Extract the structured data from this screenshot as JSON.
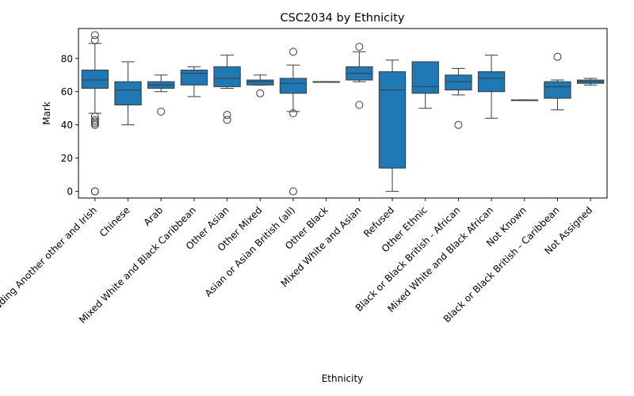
{
  "chart_data": {
    "type": "box",
    "title": "CSC2034 by Ethnicity",
    "xlabel": "Ethnicity",
    "ylabel": "Mark",
    "ylim": [
      -4,
      98
    ],
    "yticks": [
      0,
      20,
      40,
      60,
      80
    ],
    "grid": false,
    "box_color": "#1f77b4",
    "categories": [
      "White including Another other and Irish",
      "Chinese",
      "Arab",
      "Mixed White and Black Caribbean",
      "Other Asian",
      "Other Mixed",
      "Asian or Asian British (all)",
      "Other Black",
      "Mixed White and Asian",
      "Refused",
      "Other Ethnic",
      "Black or Black British - African",
      "Mixed White and Black African",
      "Not Known",
      "Black or Black British - Caribbean",
      "Not Assigned"
    ],
    "boxes": [
      {
        "whislo": 47,
        "q1": 62,
        "med": 67,
        "q3": 73,
        "whishi": 89,
        "fliers": [
          94,
          91,
          45,
          43,
          42,
          41,
          40,
          0,
          0
        ]
      },
      {
        "whislo": 40,
        "q1": 52,
        "med": 61,
        "q3": 66,
        "whishi": 78,
        "fliers": []
      },
      {
        "whislo": 60,
        "q1": 62,
        "med": 64,
        "q3": 66,
        "whishi": 70,
        "fliers": [
          48
        ]
      },
      {
        "whislo": 57,
        "q1": 64,
        "med": 71,
        "q3": 73,
        "whishi": 75,
        "fliers": []
      },
      {
        "whislo": 62,
        "q1": 63,
        "med": 68,
        "q3": 75,
        "whishi": 82,
        "fliers": [
          46,
          43
        ]
      },
      {
        "whislo": 64,
        "q1": 64,
        "med": 66,
        "q3": 67,
        "whishi": 70,
        "fliers": [
          59
        ]
      },
      {
        "whislo": 48,
        "q1": 59,
        "med": 65,
        "q3": 68,
        "whishi": 76,
        "fliers": [
          84,
          47,
          0
        ]
      },
      {
        "whislo": 66,
        "q1": 66,
        "med": 66,
        "q3": 66,
        "whishi": 66,
        "fliers": []
      },
      {
        "whislo": 66,
        "q1": 67,
        "med": 71,
        "q3": 75,
        "whishi": 84,
        "fliers": [
          87,
          52
        ]
      },
      {
        "whislo": 0,
        "q1": 14,
        "med": 61,
        "q3": 72,
        "whishi": 79,
        "fliers": []
      },
      {
        "whislo": 50,
        "q1": 59,
        "med": 63,
        "q3": 78,
        "whishi": 78,
        "fliers": []
      },
      {
        "whislo": 58,
        "q1": 61,
        "med": 66,
        "q3": 70,
        "whishi": 74,
        "fliers": [
          40
        ]
      },
      {
        "whislo": 44,
        "q1": 60,
        "med": 68,
        "q3": 72,
        "whishi": 82,
        "fliers": []
      },
      {
        "whislo": 55,
        "q1": 55,
        "med": 55,
        "q3": 55,
        "whishi": 55,
        "fliers": []
      },
      {
        "whislo": 49,
        "q1": 56,
        "med": 63,
        "q3": 66,
        "whishi": 67,
        "fliers": [
          81
        ]
      },
      {
        "whislo": 64,
        "q1": 65,
        "med": 66,
        "q3": 67,
        "whishi": 68,
        "fliers": []
      }
    ]
  }
}
